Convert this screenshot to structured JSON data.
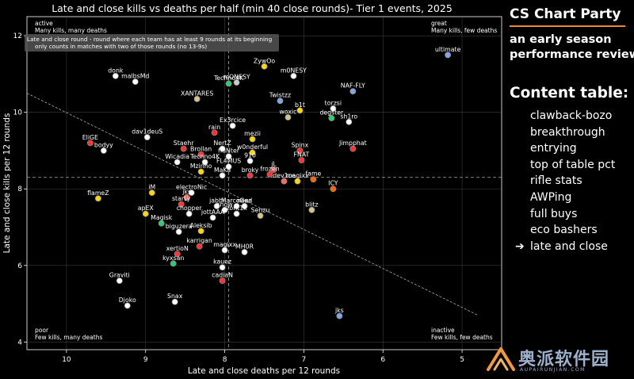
{
  "sidebar": {
    "title": "CS Chart Party",
    "subtitle_line1": "an early season",
    "subtitle_line2": "performance review",
    "toc_title": "Content table:",
    "toc_items": [
      "clawback-bozo",
      "breakthrough",
      "entrying",
      "top of table pct",
      "rifle stats",
      "AWPing",
      "full buys",
      "eco bashers",
      "late and close"
    ],
    "active_index": 8,
    "active_marker": "➔"
  },
  "watermark": {
    "text": "奥派软件园",
    "small": "AUPAIRUNJIAN.COM",
    "color": "#9db0cc"
  },
  "chart_data": {
    "type": "scatter",
    "title": "Late and close kills vs deaths per half (min 40 close rounds)- Tier 1 events, 2025",
    "xlabel": "Late and close deaths per 12 rounds",
    "ylabel": "Late and close kills per 12 rounds",
    "xlim": [
      10.5,
      4.5
    ],
    "ylim": [
      3.8,
      12.5
    ],
    "x_inverted": true,
    "xticks": [
      10,
      9,
      8,
      7,
      6,
      5
    ],
    "yticks": [
      4,
      6,
      8,
      10,
      12
    ],
    "grid": true,
    "mean_x": 7.95,
    "mean_y": 8.3,
    "trendline": [
      [
        10.5,
        10.5
      ],
      [
        4.8,
        4.7
      ]
    ],
    "definition_line1": "Late and close round - round where each team has at least 9 rounds at its beginning",
    "definition_line2": "only counts in matches with two of those rounds (no 13-9s)",
    "quadrants": {
      "tl": [
        "active",
        "Many kills, many deaths"
      ],
      "tr": [
        "great",
        "Many kills, few deaths"
      ],
      "bl": [
        "poor",
        "Few kills, many deaths"
      ],
      "br": [
        "inactive",
        "Few kills, few deaths"
      ]
    },
    "points": [
      {
        "name": "donk",
        "x": 9.38,
        "y": 10.95,
        "color": "#ffffff"
      },
      {
        "name": "malbsMd",
        "x": 9.13,
        "y": 10.8,
        "color": "#ffffff"
      },
      {
        "name": "XANTARES",
        "x": 8.35,
        "y": 10.35,
        "color": "#d4c48a"
      },
      {
        "name": "Techno4K",
        "x": 7.95,
        "y": 10.75,
        "color": "#2ecc71"
      },
      {
        "name": "mONESY",
        "x": 7.85,
        "y": 10.78,
        "color": "#cccccc"
      },
      {
        "name": "ZywOo",
        "x": 7.5,
        "y": 11.2,
        "color": "#ffd700"
      },
      {
        "name": "m0NESY",
        "x": 7.13,
        "y": 10.95,
        "color": "#ffffff"
      },
      {
        "name": "ultimate",
        "x": 5.18,
        "y": 11.5,
        "color": "#7fa7e8"
      },
      {
        "name": "NAF-FLY",
        "x": 6.38,
        "y": 10.55,
        "color": "#7fa7e8"
      },
      {
        "name": "Twistzz",
        "x": 7.3,
        "y": 10.3,
        "color": "#7fa7e8"
      },
      {
        "name": "b1t",
        "x": 7.05,
        "y": 10.05,
        "color": "#ffd700"
      },
      {
        "name": "torzsi",
        "x": 6.63,
        "y": 10.1,
        "color": "#ffffff"
      },
      {
        "name": "degster",
        "x": 6.65,
        "y": 9.85,
        "color": "#2ecc71"
      },
      {
        "name": "sh1ro",
        "x": 6.43,
        "y": 9.75,
        "color": "#ffffff"
      },
      {
        "name": "woxic",
        "x": 7.2,
        "y": 9.87,
        "color": "#d4c48a"
      },
      {
        "name": "Ex3rcice",
        "x": 7.9,
        "y": 9.65,
        "color": "#ffffff"
      },
      {
        "name": "rain",
        "x": 8.13,
        "y": 9.47,
        "color": "#ff3333"
      },
      {
        "name": "dav1deuS",
        "x": 8.98,
        "y": 9.35,
        "color": "#ffffff"
      },
      {
        "name": "mezii",
        "x": 7.65,
        "y": 9.3,
        "color": "#ffd700"
      },
      {
        "name": "EliGE",
        "x": 9.7,
        "y": 9.2,
        "color": "#ff3333"
      },
      {
        "name": "bodyy",
        "x": 9.53,
        "y": 9.0,
        "color": "#ffffff"
      },
      {
        "name": "Staehr",
        "x": 8.52,
        "y": 9.05,
        "color": "#ff3333"
      },
      {
        "name": "NertZ",
        "x": 8.03,
        "y": 9.05,
        "color": "#ffffff"
      },
      {
        "name": "w0nderful",
        "x": 7.65,
        "y": 8.95,
        "color": "#ffd700"
      },
      {
        "name": "Spinx",
        "x": 7.05,
        "y": 9.0,
        "color": "#ff3333"
      },
      {
        "name": "Jimpphat",
        "x": 6.38,
        "y": 9.05,
        "color": "#ff3333"
      },
      {
        "name": "Brollan",
        "x": 8.3,
        "y": 8.9,
        "color": "#ff3333"
      },
      {
        "name": "huNter",
        "x": 7.95,
        "y": 8.85,
        "color": "#ffffff"
      },
      {
        "name": "Wicadia",
        "x": 8.6,
        "y": 8.7,
        "color": "#ffffff"
      },
      {
        "name": "Techno4K",
        "x": 8.25,
        "y": 8.7,
        "color": "#ffffff"
      },
      {
        "name": "910",
        "x": 7.68,
        "y": 8.73,
        "color": "#ffffff"
      },
      {
        "name": "FL4MUS",
        "x": 7.95,
        "y": 8.58,
        "color": "#ffffff"
      },
      {
        "name": "FNAT",
        "x": 7.03,
        "y": 8.75,
        "color": "#ff3333"
      },
      {
        "name": "Mzinho",
        "x": 8.3,
        "y": 8.45,
        "color": "#ffd700"
      },
      {
        "name": "jL",
        "x": 7.38,
        "y": 8.5,
        "color": "#ff3333"
      },
      {
        "name": "MaKa",
        "x": 8.03,
        "y": 8.35,
        "color": "#ffffff"
      },
      {
        "name": "broky",
        "x": 7.68,
        "y": 8.35,
        "color": "#ff3333"
      },
      {
        "name": "frozen",
        "x": 7.43,
        "y": 8.38,
        "color": "#ff3333"
      },
      {
        "name": "dev1ce",
        "x": 7.25,
        "y": 8.2,
        "color": "#ff6666"
      },
      {
        "name": "magixx",
        "x": 7.08,
        "y": 8.2,
        "color": "#ffd700"
      },
      {
        "name": "fame",
        "x": 6.88,
        "y": 8.25,
        "color": "#ff6600"
      },
      {
        "name": "ICY",
        "x": 6.63,
        "y": 8.0,
        "color": "#ff6600"
      },
      {
        "name": "flameZ",
        "x": 9.6,
        "y": 7.75,
        "color": "#ffd700"
      },
      {
        "name": "iM",
        "x": 8.92,
        "y": 7.9,
        "color": "#ffd700"
      },
      {
        "name": "electroNic",
        "x": 8.42,
        "y": 7.9,
        "color": "#ffffff"
      },
      {
        "name": "jks",
        "x": 8.48,
        "y": 7.78,
        "color": "#ff6666"
      },
      {
        "name": "starLy",
        "x": 8.55,
        "y": 7.6,
        "color": "#ff3333"
      },
      {
        "name": "jabbi",
        "x": 8.1,
        "y": 7.55,
        "color": "#ffffff"
      },
      {
        "name": "MarcoGod",
        "x": 7.85,
        "y": 7.55,
        "color": "#ffffff"
      },
      {
        "name": "nexa",
        "x": 7.75,
        "y": 7.55,
        "color": "#ffffff"
      },
      {
        "name": "snow",
        "x": 8.0,
        "y": 7.45,
        "color": "#ffffff"
      },
      {
        "name": "zont1x",
        "x": 7.85,
        "y": 7.35,
        "color": "#ffffff"
      },
      {
        "name": "Senzu",
        "x": 7.55,
        "y": 7.3,
        "color": "#d4c48a"
      },
      {
        "name": "blitz",
        "x": 6.9,
        "y": 7.45,
        "color": "#d4c48a"
      },
      {
        "name": "apEX",
        "x": 9.0,
        "y": 7.35,
        "color": "#ffd700"
      },
      {
        "name": "chopper",
        "x": 8.45,
        "y": 7.35,
        "color": "#ffffff"
      },
      {
        "name": "jottAAA",
        "x": 8.15,
        "y": 7.25,
        "color": "#ffffff"
      },
      {
        "name": "Magisk",
        "x": 8.8,
        "y": 7.1,
        "color": "#2ecc71"
      },
      {
        "name": "biguzera",
        "x": 8.58,
        "y": 6.88,
        "color": "#ffffff"
      },
      {
        "name": "Aleksib",
        "x": 8.3,
        "y": 6.9,
        "color": "#ffd700"
      },
      {
        "name": "karrigan",
        "x": 8.32,
        "y": 6.5,
        "color": "#ff3333"
      },
      {
        "name": "magixx",
        "x": 8.0,
        "y": 6.4,
        "color": "#ffffff"
      },
      {
        "name": "MH0R",
        "x": 7.75,
        "y": 6.35,
        "color": "#ffffff"
      },
      {
        "name": "xertioN",
        "x": 8.6,
        "y": 6.3,
        "color": "#ff3333"
      },
      {
        "name": "kyxsan",
        "x": 8.65,
        "y": 6.05,
        "color": "#2ecc71"
      },
      {
        "name": "kauez",
        "x": 8.03,
        "y": 5.95,
        "color": "#ffffff"
      },
      {
        "name": "cadiaN",
        "x": 8.03,
        "y": 5.6,
        "color": "#ff3333"
      },
      {
        "name": "Graviti",
        "x": 9.33,
        "y": 5.6,
        "color": "#ffffff"
      },
      {
        "name": "Snax",
        "x": 8.63,
        "y": 5.05,
        "color": "#ffffff"
      },
      {
        "name": "Djoko",
        "x": 9.23,
        "y": 4.95,
        "color": "#ffffff"
      },
      {
        "name": "jks",
        "x": 6.55,
        "y": 4.68,
        "color": "#7fa7e8"
      }
    ]
  }
}
